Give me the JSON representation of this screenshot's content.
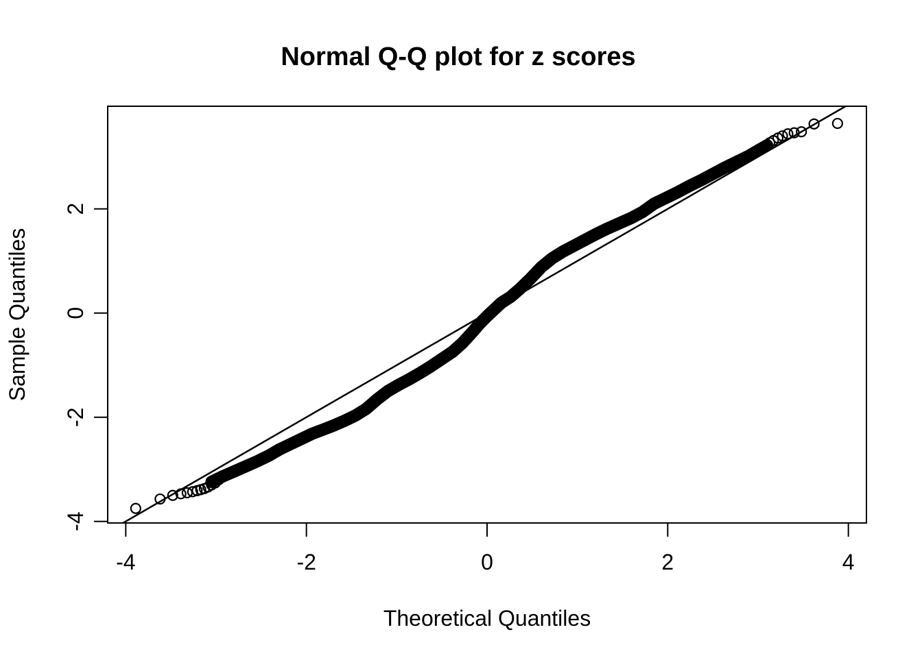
{
  "colors": {
    "foreground": "#000000",
    "background": "#ffffff"
  },
  "chart_data": {
    "type": "scatter",
    "title": "Normal Q-Q plot for z scores",
    "xlabel": "Theoretical Quantiles",
    "ylabel": "Sample Quantiles",
    "xlim": [
      -4.2,
      4.2
    ],
    "ylim": [
      -4.03,
      3.97
    ],
    "xticks": [
      -4,
      -2,
      0,
      2,
      4
    ],
    "yticks": [
      -4,
      -2,
      0,
      2
    ],
    "grid": false,
    "legend": "none",
    "marker": {
      "shape": "open-circle",
      "color": "#000000",
      "radius_px": 7,
      "stroke_px": 2.2
    },
    "reference_line": {
      "label": "qqline",
      "slope": 1,
      "intercept": 0,
      "color": "#000000"
    },
    "dense_band": [
      [
        -3.05,
        -3.24
      ],
      [
        -2.92,
        -3.13
      ],
      [
        -2.8,
        -3.04
      ],
      [
        -2.68,
        -2.95
      ],
      [
        -2.55,
        -2.85
      ],
      [
        -2.42,
        -2.74
      ],
      [
        -2.3,
        -2.62
      ],
      [
        -2.18,
        -2.52
      ],
      [
        -2.06,
        -2.42
      ],
      [
        -1.94,
        -2.32
      ],
      [
        -1.82,
        -2.24
      ],
      [
        -1.7,
        -2.16
      ],
      [
        -1.58,
        -2.07
      ],
      [
        -1.46,
        -1.97
      ],
      [
        -1.34,
        -1.84
      ],
      [
        -1.22,
        -1.66
      ],
      [
        -1.1,
        -1.5
      ],
      [
        -0.98,
        -1.38
      ],
      [
        -0.86,
        -1.27
      ],
      [
        -0.74,
        -1.15
      ],
      [
        -0.62,
        -1.02
      ],
      [
        -0.5,
        -0.88
      ],
      [
        -0.38,
        -0.74
      ],
      [
        -0.27,
        -0.57
      ],
      [
        -0.17,
        -0.38
      ],
      [
        -0.08,
        -0.2
      ],
      [
        0.0,
        -0.06
      ],
      [
        0.08,
        0.07
      ],
      [
        0.16,
        0.2
      ],
      [
        0.26,
        0.31
      ],
      [
        0.36,
        0.46
      ],
      [
        0.48,
        0.66
      ],
      [
        0.6,
        0.88
      ],
      [
        0.72,
        1.05
      ],
      [
        0.84,
        1.18
      ],
      [
        0.96,
        1.29
      ],
      [
        1.08,
        1.4
      ],
      [
        1.2,
        1.51
      ],
      [
        1.33,
        1.62
      ],
      [
        1.46,
        1.72
      ],
      [
        1.59,
        1.82
      ],
      [
        1.72,
        1.94
      ],
      [
        1.85,
        2.1
      ],
      [
        1.98,
        2.21
      ],
      [
        2.11,
        2.32
      ],
      [
        2.24,
        2.44
      ],
      [
        2.37,
        2.55
      ],
      [
        2.5,
        2.67
      ],
      [
        2.63,
        2.79
      ],
      [
        2.76,
        2.9
      ],
      [
        2.89,
        3.01
      ],
      [
        3.02,
        3.14
      ],
      [
        3.1,
        3.22
      ]
    ],
    "left_tail_points": [
      [
        -3.89,
        -3.75
      ],
      [
        -3.62,
        -3.57
      ],
      [
        -3.48,
        -3.5
      ],
      [
        -3.39,
        -3.47
      ],
      [
        -3.32,
        -3.45
      ],
      [
        -3.26,
        -3.43
      ],
      [
        -3.21,
        -3.41
      ],
      [
        -3.17,
        -3.39
      ],
      [
        -3.13,
        -3.37
      ],
      [
        -3.09,
        -3.34
      ],
      [
        -3.05,
        -3.3
      ],
      [
        -3.01,
        -3.26
      ],
      [
        -2.97,
        -3.2
      ],
      [
        -2.93,
        -3.15
      ]
    ],
    "right_tail_points": [
      [
        2.93,
        3.05
      ],
      [
        2.97,
        3.09
      ],
      [
        3.01,
        3.13
      ],
      [
        3.05,
        3.18
      ],
      [
        3.09,
        3.22
      ],
      [
        3.13,
        3.27
      ],
      [
        3.17,
        3.31
      ],
      [
        3.22,
        3.36
      ],
      [
        3.27,
        3.4
      ],
      [
        3.33,
        3.44
      ],
      [
        3.4,
        3.46
      ],
      [
        3.48,
        3.48
      ],
      [
        3.62,
        3.63
      ],
      [
        3.88,
        3.64
      ]
    ]
  }
}
